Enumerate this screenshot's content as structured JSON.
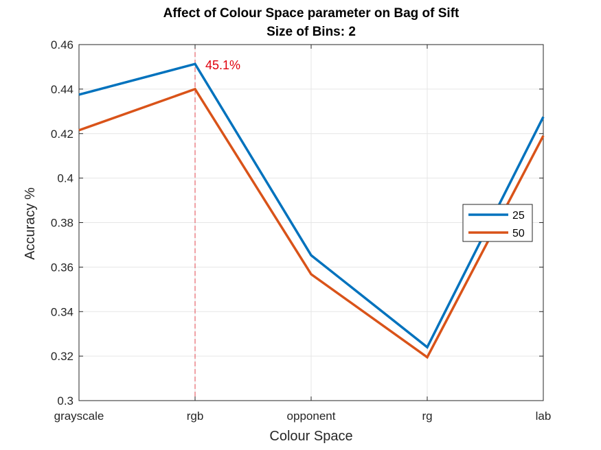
{
  "chart_data": {
    "type": "line",
    "title": "Affect of Colour Space parameter on Bag of Sift",
    "subtitle": "Size of Bins: 2",
    "xlabel": "Colour Space",
    "ylabel": "Accuracy %",
    "categories": [
      "grayscale",
      "rgb",
      "opponent",
      "rg",
      "lab"
    ],
    "ylim": [
      0.3,
      0.46
    ],
    "yticks": [
      0.3,
      0.32,
      0.34,
      0.36,
      0.38,
      0.4,
      0.42,
      0.44,
      0.46
    ],
    "ytick_labels": [
      "0.3",
      "0.32",
      "0.34",
      "0.36",
      "0.38",
      "0.4",
      "0.42",
      "0.44",
      "0.46"
    ],
    "grid": true,
    "legend_position": "right",
    "series": [
      {
        "name": "25",
        "color": "#0072BD",
        "values": [
          0.4375,
          0.4513,
          0.3653,
          0.324,
          0.4275
        ]
      },
      {
        "name": "50",
        "color": "#D95319",
        "values": [
          0.4215,
          0.44,
          0.3568,
          0.3195,
          0.419
        ]
      }
    ],
    "annotation": {
      "text": "45.1%",
      "category": "rgb",
      "color": "#E0000D",
      "line_color": "#E0454E"
    }
  }
}
